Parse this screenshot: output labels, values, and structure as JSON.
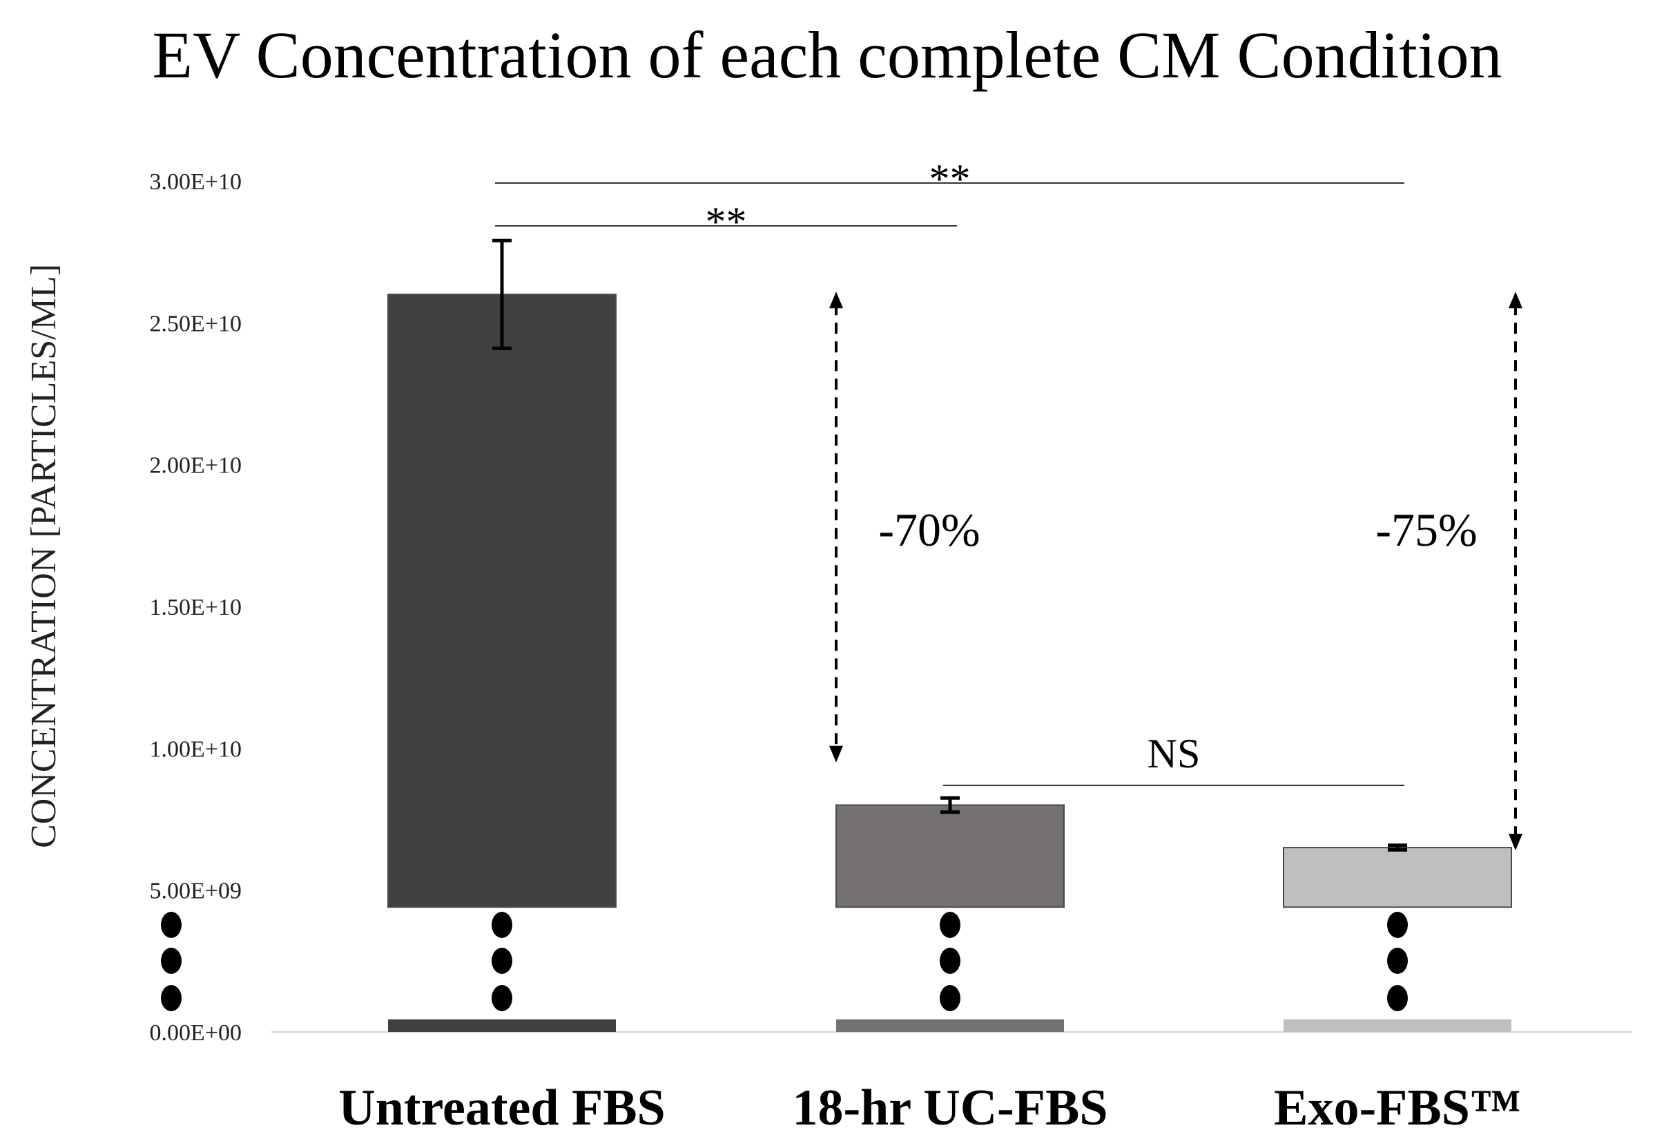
{
  "chart_data": {
    "type": "bar",
    "title": "EV Concentration of each complete CM Condition",
    "ylabel": "CONCENTRATION [PARTICLES/ML]",
    "xlabel": "",
    "ylim": [
      0,
      30000000000
    ],
    "y_ticks": [
      "0.00E+00",
      "5.00E+09",
      "1.00E+10",
      "1.50E+10",
      "2.00E+10",
      "2.50E+10",
      "3.00E+10"
    ],
    "y_tick_values": [
      0,
      5000000000,
      10000000000,
      15000000000,
      20000000000,
      25000000000,
      30000000000
    ],
    "axis_break": true,
    "categories": [
      "Untreated FBS",
      "18-hr UC-FBS",
      "Exo-FBS™"
    ],
    "values": [
      26000000000,
      8000000000,
      6500000000
    ],
    "error": [
      1900000000,
      250000000,
      80000000
    ],
    "colors": [
      "#404040",
      "#767171",
      "#bfbfbf"
    ],
    "significance": [
      {
        "from": 0,
        "to": 2,
        "label": "**"
      },
      {
        "from": 0,
        "to": 1,
        "label": "**"
      },
      {
        "from": 1,
        "to": 2,
        "label": "NS"
      }
    ],
    "annotations": [
      {
        "category": 1,
        "label": "-70%"
      },
      {
        "category": 2,
        "label": "-75%"
      }
    ]
  }
}
